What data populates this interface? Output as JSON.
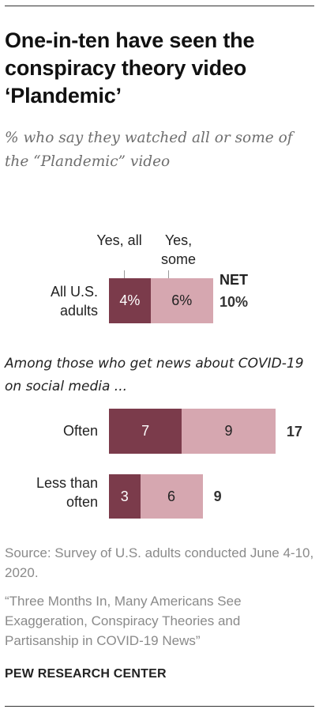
{
  "title": "One-in-ten have seen the conspiracy theory video ‘Plandemic’",
  "subtitle": "% who say they watched all or some of the “Plandemic” video",
  "section_note": "Among those who get news about COVID-19 on social media ...",
  "source": "Source: Survey of U.S. adults conducted June 4-10, 2020.",
  "report": "“Three Months In, Many Americans See Exaggeration, Conspiracy Theories and Partisanship in COVID-19 News”",
  "brand": "PEW RESEARCH CENTER",
  "colors": {
    "yes_all": "#7b3b4b",
    "yes_some": "#d6a7b0"
  },
  "chart_data": {
    "type": "bar",
    "orientation": "horizontal",
    "stacked": true,
    "categories": [
      "All U.S. adults",
      "Often",
      "Less than often"
    ],
    "series": [
      {
        "name": "Yes, all",
        "values": [
          4,
          7,
          3
        ],
        "labels": [
          "4%",
          "7",
          "3"
        ]
      },
      {
        "name": "Yes, some",
        "values": [
          6,
          9,
          6
        ],
        "labels": [
          "6%",
          "9",
          "6"
        ]
      }
    ],
    "net": {
      "label": "NET",
      "values": [
        10,
        17,
        9
      ],
      "labels": [
        "10%",
        "17",
        "9"
      ]
    },
    "xlim": [
      0,
      17
    ]
  }
}
